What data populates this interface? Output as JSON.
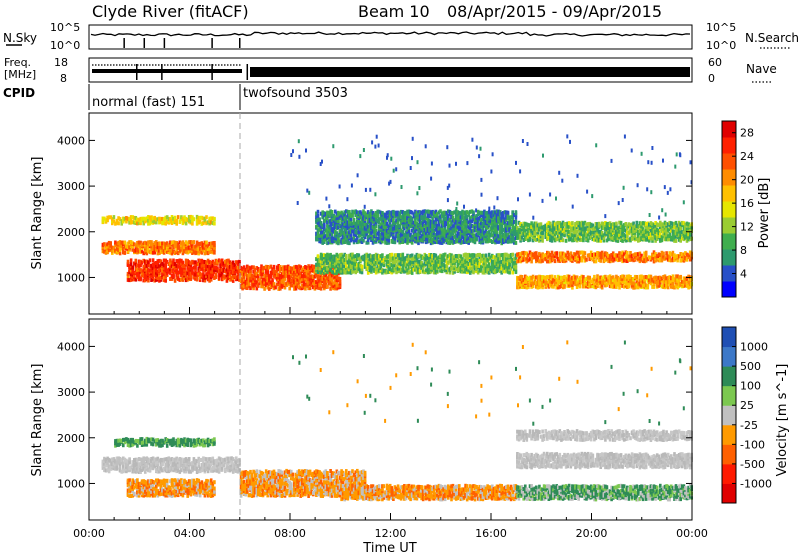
{
  "header": {
    "station": "Clyde River (fitACF)",
    "beam": "Beam 10",
    "date_range": "08/Apr/2015 - 09/Apr/2015"
  },
  "noise_panel": {
    "left_label": "N.Sky",
    "right_label": "N.Search",
    "left_ticks": [
      "10^5",
      "10^0"
    ],
    "right_ticks": [
      "10^5",
      "10^0"
    ]
  },
  "freq_panel": {
    "left_label_line1": "Freq.",
    "left_label_line2": "[MHz]",
    "right_label": "Nave",
    "left_ticks": [
      "18",
      "8"
    ],
    "right_ticks": [
      "60",
      "0"
    ]
  },
  "cpid_panel": {
    "label": "CPID",
    "segments": [
      "normal (fast) 151",
      "twofsound 3503"
    ]
  },
  "chart_data": [
    {
      "type": "heatmap",
      "quantity": "Power",
      "ylabel": "Slant Range [km]",
      "ylim": [
        200,
        4600
      ],
      "yticks": [
        "1000",
        "2000",
        "3000",
        "4000"
      ],
      "xlim_hours": [
        0,
        24
      ],
      "colorbar": {
        "label": "Power [dB]",
        "ticks": [
          "28",
          "24",
          "20",
          "16",
          "12",
          "8",
          "4"
        ],
        "tick_values": [
          28,
          24,
          20,
          16,
          12,
          8,
          4
        ],
        "range": [
          0,
          30
        ],
        "colors": [
          "#0000ff",
          "#2850c8",
          "#2d9a6e",
          "#3fae4e",
          "#9acd32",
          "#e6e600",
          "#ffc000",
          "#ff8c00",
          "#ff5000",
          "#ff2000",
          "#e00000"
        ]
      },
      "bands_km": [
        {
          "hours": [
            1.5,
            6.0
          ],
          "center": 1150,
          "width": 450,
          "dB": 26
        },
        {
          "hours": [
            0.5,
            5.0
          ],
          "center": 1650,
          "width": 250,
          "dB": 22
        },
        {
          "hours": [
            0.5,
            5.0
          ],
          "center": 2250,
          "width": 150,
          "dB": 16
        },
        {
          "hours": [
            6.0,
            10.0
          ],
          "center": 1000,
          "width": 500,
          "dB": 24
        },
        {
          "hours": [
            9.0,
            17.0
          ],
          "center": 1300,
          "width": 400,
          "dB": 10
        },
        {
          "hours": [
            9.0,
            17.0
          ],
          "center": 2100,
          "width": 700,
          "dB": 6
        },
        {
          "hours": [
            17.0,
            24.0
          ],
          "center": 1450,
          "width": 200,
          "dB": 22
        },
        {
          "hours": [
            17.0,
            24.0
          ],
          "center": 900,
          "width": 250,
          "dB": 20
        },
        {
          "hours": [
            17.0,
            24.0
          ],
          "center": 2000,
          "width": 400,
          "dB": 10
        }
      ]
    },
    {
      "type": "heatmap",
      "quantity": "Velocity",
      "ylabel": "Slant Range [km]",
      "ylim": [
        200,
        4600
      ],
      "yticks": [
        "1000",
        "2000",
        "3000",
        "4000"
      ],
      "xlim_hours": [
        0,
        24
      ],
      "xticks": [
        "00:00",
        "04:00",
        "08:00",
        "12:00",
        "16:00",
        "20:00",
        "00:00"
      ],
      "xlabel": "Time UT",
      "colorbar": {
        "label": "Velocity [m s^-1]",
        "ticks": [
          "1000",
          "500",
          "100",
          "25",
          "-25",
          "-100",
          "-500",
          "-1000"
        ],
        "colors": [
          "#1f4fb4",
          "#3c78c8",
          "#2e8b57",
          "#7cc850",
          "#c0c0c0",
          "#ff9a00",
          "#ff6000",
          "#ff1a00",
          "#e00000"
        ]
      },
      "bands_km": [
        {
          "hours": [
            0.5,
            6.0
          ],
          "center": 1400,
          "width": 300,
          "class": "ground"
        },
        {
          "hours": [
            1.5,
            5.0
          ],
          "center": 900,
          "width": 350,
          "class": "neg-slow"
        },
        {
          "hours": [
            1.0,
            5.0
          ],
          "center": 1900,
          "width": 150,
          "class": "pos-mid"
        },
        {
          "hours": [
            6.0,
            11.0
          ],
          "center": 1000,
          "width": 550,
          "class": "neg-slow"
        },
        {
          "hours": [
            10.0,
            17.0
          ],
          "center": 800,
          "width": 300,
          "class": "neg-slow"
        },
        {
          "hours": [
            17.0,
            24.0
          ],
          "center": 1500,
          "width": 300,
          "class": "ground"
        },
        {
          "hours": [
            17.0,
            24.0
          ],
          "center": 800,
          "width": 300,
          "class": "pos-low"
        },
        {
          "hours": [
            17.0,
            24.0
          ],
          "center": 2050,
          "width": 200,
          "class": "ground"
        }
      ]
    }
  ]
}
